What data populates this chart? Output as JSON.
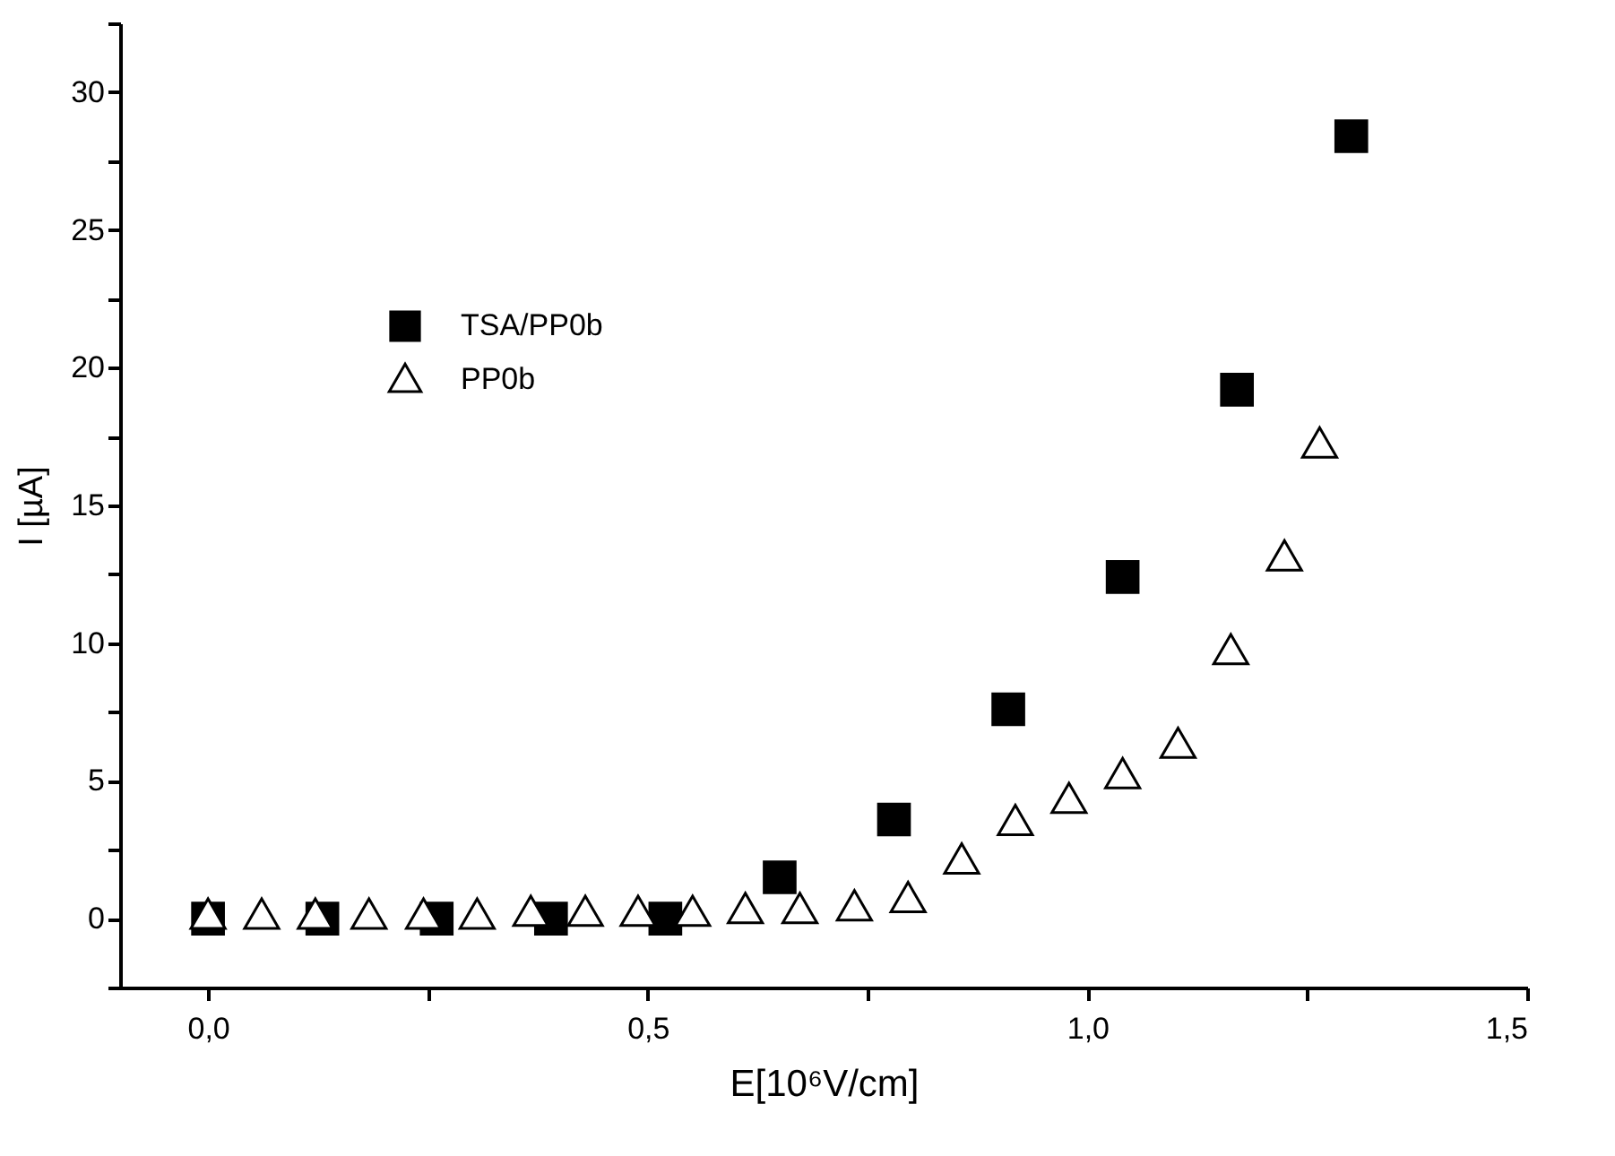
{
  "chart_data": {
    "type": "scatter",
    "xlabel": "E[10⁶V/cm]",
    "ylabel": "I [µA]",
    "xlim": [
      -0.1,
      1.5
    ],
    "xticks": [
      {
        "value": 0,
        "label": "0,0"
      },
      {
        "value": 0.25,
        "label": null
      },
      {
        "value": 0.5,
        "label": "0,5"
      },
      {
        "value": 0.75,
        "label": null
      },
      {
        "value": 1.0,
        "label": "1,0"
      },
      {
        "value": 1.25,
        "label": null
      },
      {
        "value": 1.5,
        "label": "1,5"
      }
    ],
    "ylim": [
      -2.5,
      32.5
    ],
    "yticks": [
      {
        "value": -2.5,
        "label": null
      },
      0,
      {
        "value": 2.5,
        "label": null
      },
      5,
      {
        "value": 7.5,
        "label": null
      },
      10,
      {
        "value": 12.5,
        "label": null
      },
      15,
      {
        "value": 17.5,
        "label": null
      },
      20,
      {
        "value": 22.5,
        "label": null
      },
      25,
      {
        "value": 27.5,
        "label": null
      },
      30,
      {
        "value": 32.5,
        "label": null
      }
    ],
    "grid": false,
    "legend": "top left",
    "series": [
      {
        "name": "TSA/PP0b",
        "color": "#000000",
        "marker": "square",
        "x": [
          0,
          0.13,
          0.26,
          0.39,
          0.52,
          0.65,
          0.78,
          0.91,
          1.04,
          1.17,
          1.3
        ],
        "values": [
          0,
          0,
          0,
          0,
          0,
          1.5,
          3.6,
          7.6,
          12.4,
          19.2,
          28.4
        ]
      },
      {
        "name": "PP0b",
        "color": "#000000",
        "marker": "triangle",
        "x": [
          0,
          0.061,
          0.122,
          0.183,
          0.245,
          0.306,
          0.367,
          0.429,
          0.489,
          0.551,
          0.611,
          0.673,
          0.735,
          0.796,
          0.857,
          0.918,
          0.979,
          1.04,
          1.103,
          1.163,
          1.224,
          1.264
        ],
        "values": [
          0.1,
          0.1,
          0.1,
          0.1,
          0.1,
          0.1,
          0.2,
          0.2,
          0.2,
          0.2,
          0.3,
          0.3,
          0.4,
          0.7,
          2.1,
          3.5,
          4.3,
          5.2,
          6.3,
          9.7,
          13.1,
          17.2
        ]
      }
    ]
  }
}
